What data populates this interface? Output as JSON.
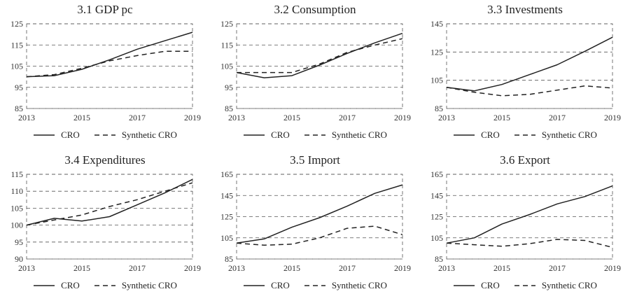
{
  "chart_data": [
    {
      "type": "line",
      "title": "3.1 GDP pc",
      "x": [
        2013,
        2014,
        2015,
        2016,
        2017,
        2018,
        2019
      ],
      "xticks": [
        "2013",
        "2015",
        "2017",
        "2019"
      ],
      "ylim": [
        85,
        125
      ],
      "yticks": [
        85,
        95,
        105,
        115,
        125
      ],
      "series": [
        {
          "name": "CRO",
          "style": "solid",
          "values": [
            100,
            100.5,
            103.5,
            108,
            113,
            117,
            121
          ]
        },
        {
          "name": "Synthetic CRO",
          "style": "dashed",
          "values": [
            100,
            101,
            104,
            107.5,
            110,
            112,
            112
          ]
        }
      ]
    },
    {
      "type": "line",
      "title": "3.2 Consumption",
      "x": [
        2013,
        2014,
        2015,
        2016,
        2017,
        2018,
        2019
      ],
      "xticks": [
        "2013",
        "2015",
        "2017",
        "2019"
      ],
      "ylim": [
        85,
        125
      ],
      "yticks": [
        85,
        95,
        105,
        115,
        125
      ],
      "series": [
        {
          "name": "CRO",
          "style": "solid",
          "values": [
            102,
            99.5,
            100.5,
            105.5,
            111,
            116,
            120.5
          ]
        },
        {
          "name": "Synthetic CRO",
          "style": "dashed",
          "values": [
            102,
            102,
            102,
            106,
            111.5,
            115,
            118
          ]
        }
      ]
    },
    {
      "type": "line",
      "title": "3.3 Investments",
      "x": [
        2013,
        2014,
        2015,
        2016,
        2017,
        2018,
        2019
      ],
      "xticks": [
        "2013",
        "2015",
        "2017",
        "2019"
      ],
      "ylim": [
        85,
        145
      ],
      "yticks": [
        85,
        105,
        125,
        145
      ],
      "series": [
        {
          "name": "CRO",
          "style": "solid",
          "values": [
            100,
            97.5,
            102,
            109,
            116,
            125.5,
            135.5
          ]
        },
        {
          "name": "Synthetic CRO",
          "style": "dashed",
          "values": [
            100,
            96.5,
            94,
            95,
            98,
            101,
            99.5
          ]
        }
      ]
    },
    {
      "type": "line",
      "title": "3.4 Expenditures",
      "x": [
        2013,
        2014,
        2015,
        2016,
        2017,
        2018,
        2019
      ],
      "xticks": [
        "2013",
        "2015",
        "2017",
        "2019"
      ],
      "ylim": [
        90,
        115
      ],
      "yticks": [
        90,
        95,
        100,
        105,
        110,
        115
      ],
      "series": [
        {
          "name": "CRO",
          "style": "solid",
          "values": [
            100,
            102,
            101.2,
            102.5,
            106,
            109.5,
            113.5
          ]
        },
        {
          "name": "Synthetic CRO",
          "style": "dashed",
          "values": [
            100,
            101.5,
            103,
            105.5,
            107.5,
            110,
            112.5
          ]
        }
      ]
    },
    {
      "type": "line",
      "title": "3.5 Import",
      "x": [
        2013,
        2014,
        2015,
        2016,
        2017,
        2018,
        2019
      ],
      "xticks": [
        "2013",
        "2015",
        "2017",
        "2019"
      ],
      "ylim": [
        85,
        165
      ],
      "yticks": [
        85,
        105,
        125,
        145,
        165
      ],
      "series": [
        {
          "name": "CRO",
          "style": "solid",
          "values": [
            100,
            104,
            115,
            124,
            135,
            147,
            155
          ]
        },
        {
          "name": "Synthetic CRO",
          "style": "dashed",
          "values": [
            100,
            98,
            99,
            105,
            114,
            116,
            108
          ]
        }
      ]
    },
    {
      "type": "line",
      "title": "3.6 Export",
      "x": [
        2013,
        2014,
        2015,
        2016,
        2017,
        2018,
        2019
      ],
      "xticks": [
        "2013",
        "2015",
        "2017",
        "2019"
      ],
      "ylim": [
        85,
        165
      ],
      "yticks": [
        85,
        105,
        125,
        145,
        165
      ],
      "series": [
        {
          "name": "CRO",
          "style": "solid",
          "values": [
            100,
            105,
            118,
            127,
            137,
            144,
            154
          ]
        },
        {
          "name": "Synthetic CRO",
          "style": "dashed",
          "values": [
            100,
            98.5,
            97,
            99.5,
            103.5,
            102.5,
            96
          ]
        }
      ]
    }
  ]
}
